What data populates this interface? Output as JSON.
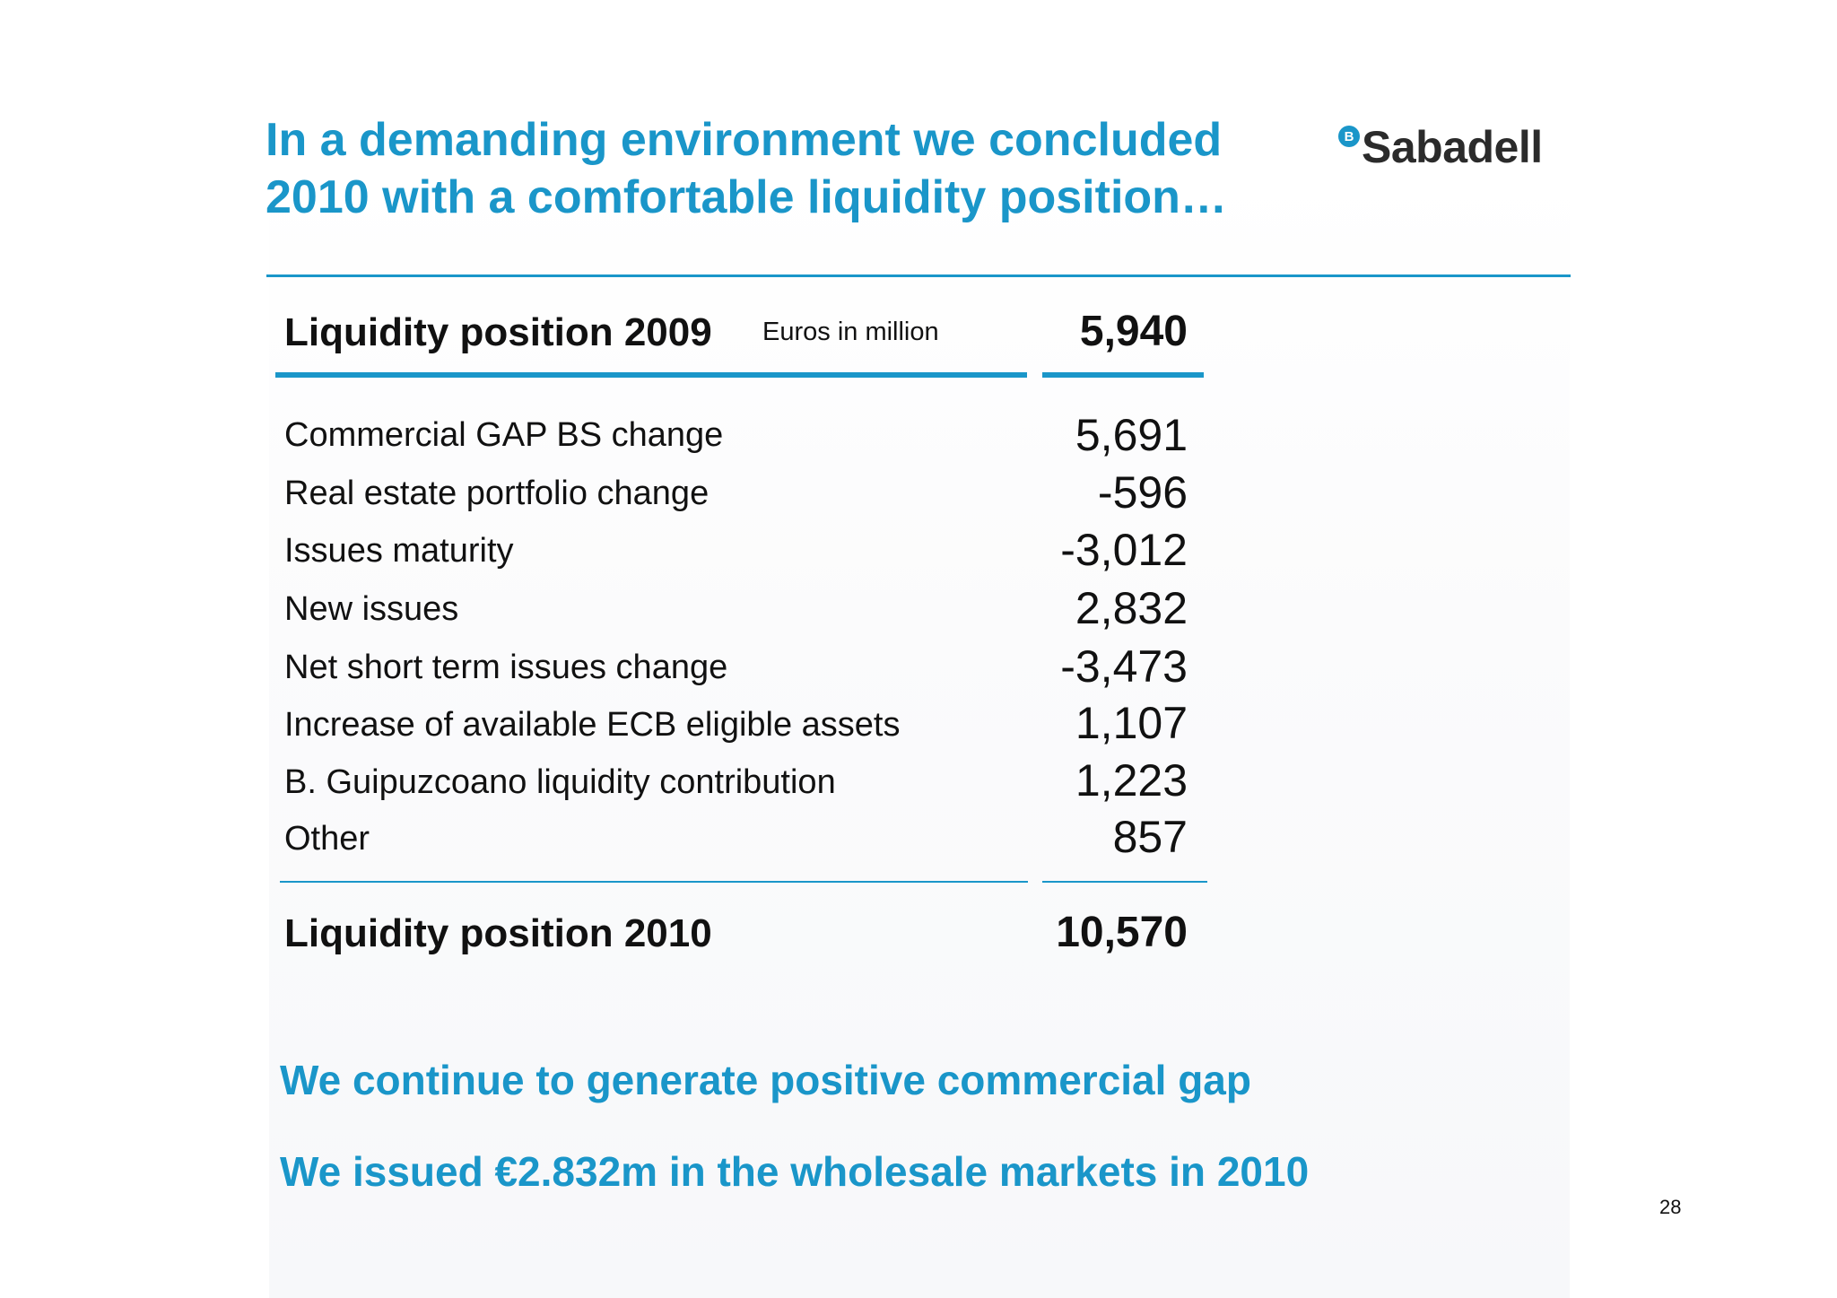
{
  "title": {
    "line1": "In a demanding environment we concluded",
    "line2": "2010 with a comfortable liquidity position…"
  },
  "logo": {
    "mark": "B",
    "text": "Sabadell",
    "color": "#1a96c9"
  },
  "table": {
    "header_label": "Liquidity position 2009",
    "unit_note": "Euros in million",
    "header_value": "5,940",
    "rows": [
      {
        "label": "Commercial GAP BS change",
        "value": "5,691"
      },
      {
        "label": "Real estate portfolio change",
        "value": "-596"
      },
      {
        "label": "Issues maturity",
        "value": "-3,012"
      },
      {
        "label": "New issues",
        "value": "2,832"
      },
      {
        "label": "Net short term issues change",
        "value": "-3,473"
      },
      {
        "label": "Increase of available ECB eligible assets",
        "value": "1,107"
      },
      {
        "label": "B. Guipuzcoano liquidity contribution",
        "value": "1,223"
      },
      {
        "label": "Other",
        "value": "857"
      }
    ],
    "total_label": "Liquidity position 2010",
    "total_value": "10,570"
  },
  "messages": [
    "We continue to generate positive commercial gap",
    "We issued €2.832m in the wholesale markets in 2010"
  ],
  "page_number": "28",
  "colors": {
    "accent": "#1a96c9",
    "text": "#111111"
  }
}
